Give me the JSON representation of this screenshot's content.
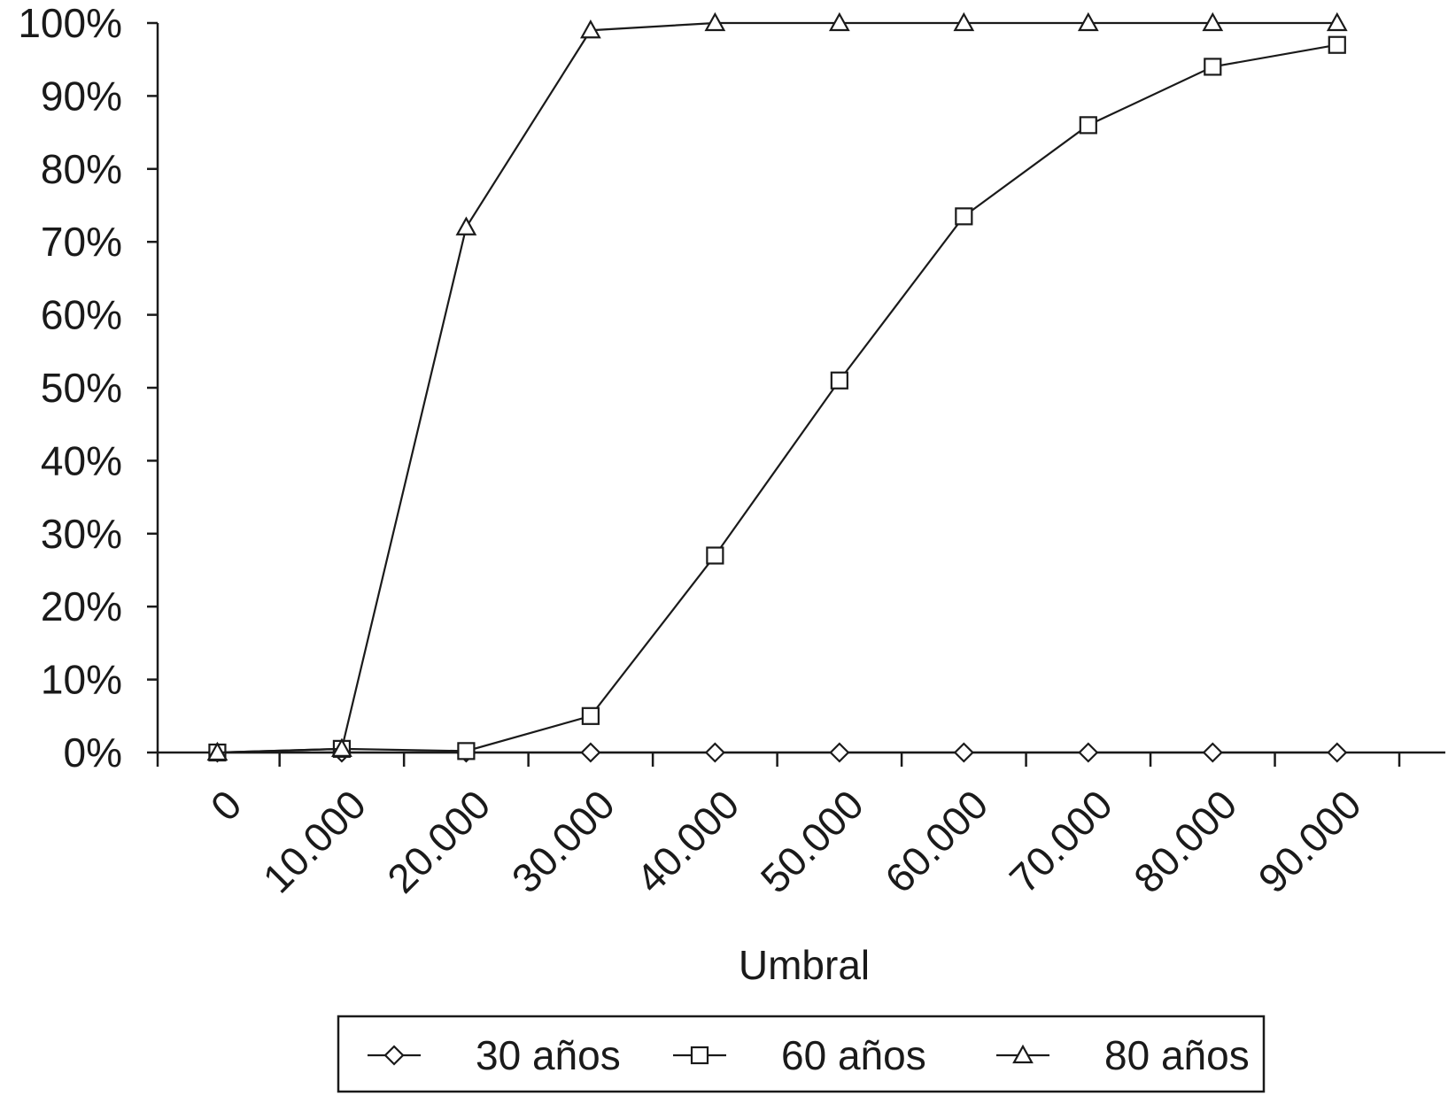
{
  "chart_data": {
    "type": "line",
    "categories": [
      "0",
      "10.000",
      "20.000",
      "30.000",
      "40.000",
      "50.000",
      "60.000",
      "70.000",
      "80.000",
      "90.000"
    ],
    "xlabel": "Umbral",
    "ylabel": "",
    "ylim": [
      0,
      100
    ],
    "y_ticks": [
      "0%",
      "10%",
      "20%",
      "30%",
      "40%",
      "50%",
      "60%",
      "70%",
      "80%",
      "90%",
      "100%"
    ],
    "grid": false,
    "legend_position": "bottom",
    "series": [
      {
        "name": "30 años",
        "marker": "diamond",
        "values": [
          0,
          0,
          0,
          0,
          0,
          0,
          0,
          0,
          0,
          0
        ]
      },
      {
        "name": "60 años",
        "marker": "square",
        "values": [
          0,
          0.5,
          0.2,
          5,
          27,
          51,
          73.5,
          86,
          94,
          97
        ]
      },
      {
        "name": "80 años",
        "marker": "triangle",
        "values": [
          0,
          0.5,
          72,
          99,
          100,
          100,
          100,
          100,
          100,
          100
        ]
      }
    ]
  }
}
